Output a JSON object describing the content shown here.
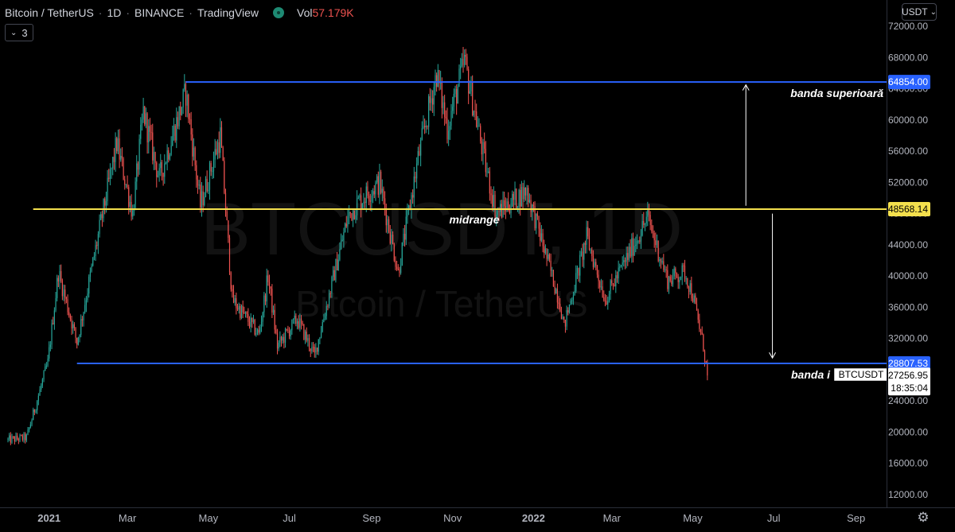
{
  "header": {
    "symbol_title": "Bitcoin / TetherUS",
    "interval": "1D",
    "exchange": "BINANCE",
    "source": "TradingView",
    "separator": "·",
    "volume_label": "Vol",
    "volume_value": "57.179K"
  },
  "indicators_toggle": {
    "count": "3",
    "icon": "chevron-down-icon"
  },
  "currency_selector": {
    "label": "USDT",
    "icon": "chevron-down-icon"
  },
  "settings": {
    "icon": "gear-icon"
  },
  "watermark": {
    "symbol": "BTCUSDT, 1D",
    "name": "Bitcoin / TetherUS"
  },
  "colors": {
    "background": "#000000",
    "up_candle": "#26a69a",
    "down_candle": "#ef5350",
    "range_band": "#2962ff",
    "midrange": "#f4e04d",
    "price_tag_blue": "#2962ff",
    "price_tag_yellow": "#f4e04d",
    "text": "#d1d4dc"
  },
  "chart_data": {
    "type": "candlestick",
    "ylim": [
      10000,
      74000
    ],
    "y_scale": "linear",
    "y_ticks": [
      "72000.00",
      "68000.00",
      "64000.00",
      "60000.00",
      "56000.00",
      "52000.00",
      "48000.00",
      "44000.00",
      "40000.00",
      "36000.00",
      "32000.00",
      "28000.00",
      "24000.00",
      "20000.00",
      "16000.00",
      "12000.00"
    ],
    "x_range": [
      "2020-12-01",
      "2022-09-30"
    ],
    "x_ticks": [
      {
        "date": "2021-01-01",
        "label": "2021",
        "bold": true
      },
      {
        "date": "2021-03-01",
        "label": "Mar",
        "bold": false
      },
      {
        "date": "2021-05-01",
        "label": "May",
        "bold": false
      },
      {
        "date": "2021-07-01",
        "label": "Jul",
        "bold": false
      },
      {
        "date": "2021-09-01",
        "label": "Sep",
        "bold": false
      },
      {
        "date": "2021-11-01",
        "label": "Nov",
        "bold": false
      },
      {
        "date": "2022-01-01",
        "label": "2022",
        "bold": true
      },
      {
        "date": "2022-03-01",
        "label": "Mar",
        "bold": false
      },
      {
        "date": "2022-05-01",
        "label": "May",
        "bold": false
      },
      {
        "date": "2022-07-01",
        "label": "Jul",
        "bold": false
      },
      {
        "date": "2022-09-01",
        "label": "Sep",
        "bold": false
      }
    ],
    "price_path": [
      [
        "2020-12-01",
        19000
      ],
      [
        "2020-12-15",
        19300
      ],
      [
        "2020-12-31",
        28900
      ],
      [
        "2021-01-08",
        40500
      ],
      [
        "2021-01-22",
        31500
      ],
      [
        "2021-02-08",
        46000
      ],
      [
        "2021-02-21",
        57000
      ],
      [
        "2021-03-05",
        48000
      ],
      [
        "2021-03-13",
        61000
      ],
      [
        "2021-03-25",
        52500
      ],
      [
        "2021-04-14",
        63500
      ],
      [
        "2021-04-25",
        49000
      ],
      [
        "2021-05-10",
        58000
      ],
      [
        "2021-05-19",
        37000
      ],
      [
        "2021-06-08",
        32500
      ],
      [
        "2021-06-15",
        40000
      ],
      [
        "2021-06-22",
        31000
      ],
      [
        "2021-07-07",
        34500
      ],
      [
        "2021-07-20",
        29800
      ],
      [
        "2021-08-14",
        47500
      ],
      [
        "2021-08-22",
        49500
      ],
      [
        "2021-09-07",
        52000
      ],
      [
        "2021-09-21",
        40500
      ],
      [
        "2021-10-06",
        55000
      ],
      [
        "2021-10-20",
        66000
      ],
      [
        "2021-10-28",
        59000
      ],
      [
        "2021-11-10",
        67500
      ],
      [
        "2021-11-26",
        54000
      ],
      [
        "2021-12-04",
        48000
      ],
      [
        "2021-12-27",
        51000
      ],
      [
        "2022-01-21",
        36500
      ],
      [
        "2022-01-24",
        33500
      ],
      [
        "2022-02-10",
        45000
      ],
      [
        "2022-02-24",
        37000
      ],
      [
        "2022-03-28",
        47500
      ],
      [
        "2022-04-12",
        39500
      ],
      [
        "2022-04-25",
        40500
      ],
      [
        "2022-05-01",
        37500
      ],
      [
        "2022-05-09",
        31000
      ],
      [
        "2022-05-12",
        27257
      ]
    ],
    "levels": [
      {
        "name": "banda superioară",
        "value": 64854.0,
        "label": "64854.00",
        "from": "2021-04-14",
        "color": "#2962ff"
      },
      {
        "name": "midrange",
        "value": 48568.14,
        "label": "48568.14",
        "from": "2020-12-20",
        "color": "#f4e04d"
      },
      {
        "name": "banda inferioară",
        "value": 28807.53,
        "label": "28807.53",
        "from": "2021-01-22",
        "color": "#2962ff"
      }
    ],
    "annotations": {
      "upper": "banda superioară",
      "mid": "midrange",
      "lower": "banda i"
    },
    "arrows": [
      {
        "date": "2022-06-10",
        "from": 49000,
        "to": 64500,
        "direction": "up"
      },
      {
        "date": "2022-06-30",
        "from": 48000,
        "to": 29500,
        "direction": "down"
      }
    ],
    "last_price": {
      "ticker": "BTCUSDT",
      "value": 27256.95,
      "label": "27256.95",
      "countdown": "18:35:04"
    }
  }
}
